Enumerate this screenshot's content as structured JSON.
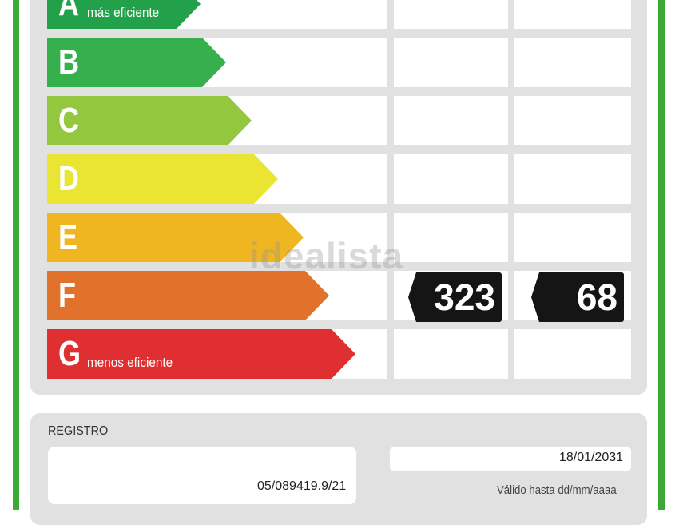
{
  "watermark": "idealista",
  "scale": [
    {
      "letter": "A",
      "label": "más eficiente",
      "color": "#23a04a"
    },
    {
      "letter": "B",
      "label": "",
      "color": "#35b04c"
    },
    {
      "letter": "C",
      "label": "",
      "color": "#93c83e"
    },
    {
      "letter": "D",
      "label": "",
      "color": "#eae533"
    },
    {
      "letter": "E",
      "label": "",
      "color": "#efb621"
    },
    {
      "letter": "F",
      "label": "",
      "color": "#e0722b"
    },
    {
      "letter": "G",
      "label": "menos eficiente",
      "color": "#e02f31"
    }
  ],
  "ratings": {
    "class": "F",
    "consumption": "323",
    "emissions": "68"
  },
  "registration": {
    "label": "REGISTRO",
    "number": "05/089419.9/21"
  },
  "validity": {
    "date": "18/01/2031",
    "label": "Válido hasta dd/mm/aaaa"
  },
  "colors": {
    "frame_green": "#3aa935",
    "panel_gray": "#e1e1e1",
    "rating_badge": "#151515"
  }
}
